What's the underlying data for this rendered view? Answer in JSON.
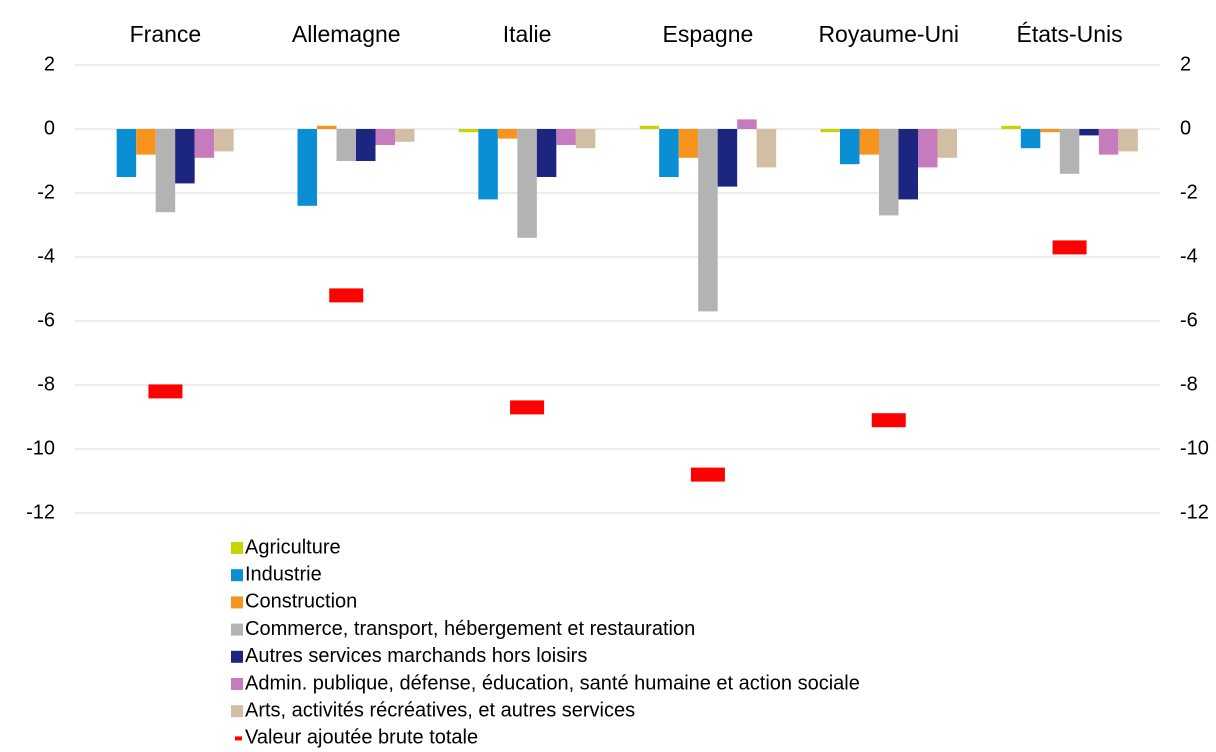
{
  "chart_data": {
    "type": "bar",
    "categories": [
      "France",
      "Allemagne",
      "Italie",
      "Espagne",
      "Royaume-Uni",
      "États-Unis"
    ],
    "series": [
      {
        "name": "Agriculture",
        "color": "#c8d400",
        "type": "bar",
        "values": [
          0,
          0,
          -0.1,
          0.1,
          -0.1,
          0.1
        ]
      },
      {
        "name": "Industrie",
        "color": "#0b8fd4",
        "type": "bar",
        "values": [
          -1.5,
          -2.4,
          -2.2,
          -1.5,
          -1.1,
          -0.6
        ]
      },
      {
        "name": "Construction",
        "color": "#f7941d",
        "type": "bar",
        "values": [
          -0.8,
          0.1,
          -0.3,
          -0.9,
          -0.8,
          -0.1
        ]
      },
      {
        "name": "Commerce, transport, hébergement et restauration",
        "color": "#b3b3b3",
        "type": "bar",
        "values": [
          -2.6,
          -1.0,
          -3.4,
          -5.7,
          -2.7,
          -1.4
        ]
      },
      {
        "name": "Autres services marchands hors loisirs",
        "color": "#1c2580",
        "type": "bar",
        "values": [
          -1.7,
          -1.0,
          -1.5,
          -1.8,
          -2.2,
          -0.2
        ]
      },
      {
        "name": "Admin. publique, défense, éducation, santé humaine et action sociale",
        "color": "#c77bbf",
        "type": "bar",
        "values": [
          -0.9,
          -0.5,
          -0.5,
          0.3,
          -1.2,
          -0.8
        ]
      },
      {
        "name": "Arts, activités récréatives, et autres services",
        "color": "#d2bfa3",
        "type": "bar",
        "values": [
          -0.7,
          -0.4,
          -0.6,
          -1.2,
          -0.9,
          -0.7
        ]
      },
      {
        "name": "Valeur ajoutée brute totale",
        "color": "#ff0000",
        "type": "marker",
        "values": [
          -8.2,
          -5.2,
          -8.7,
          -10.8,
          -9.1,
          -3.7
        ]
      }
    ],
    "ylim": [
      -12,
      2
    ],
    "yticks": [
      2,
      0,
      -2,
      -4,
      -6,
      -8,
      -10,
      -12
    ],
    "y2lim": [
      -12,
      2
    ],
    "y2ticks": [
      2,
      0,
      -2,
      -4,
      -6,
      -8,
      -10,
      -12
    ],
    "grid": true,
    "legend": "bottom"
  }
}
